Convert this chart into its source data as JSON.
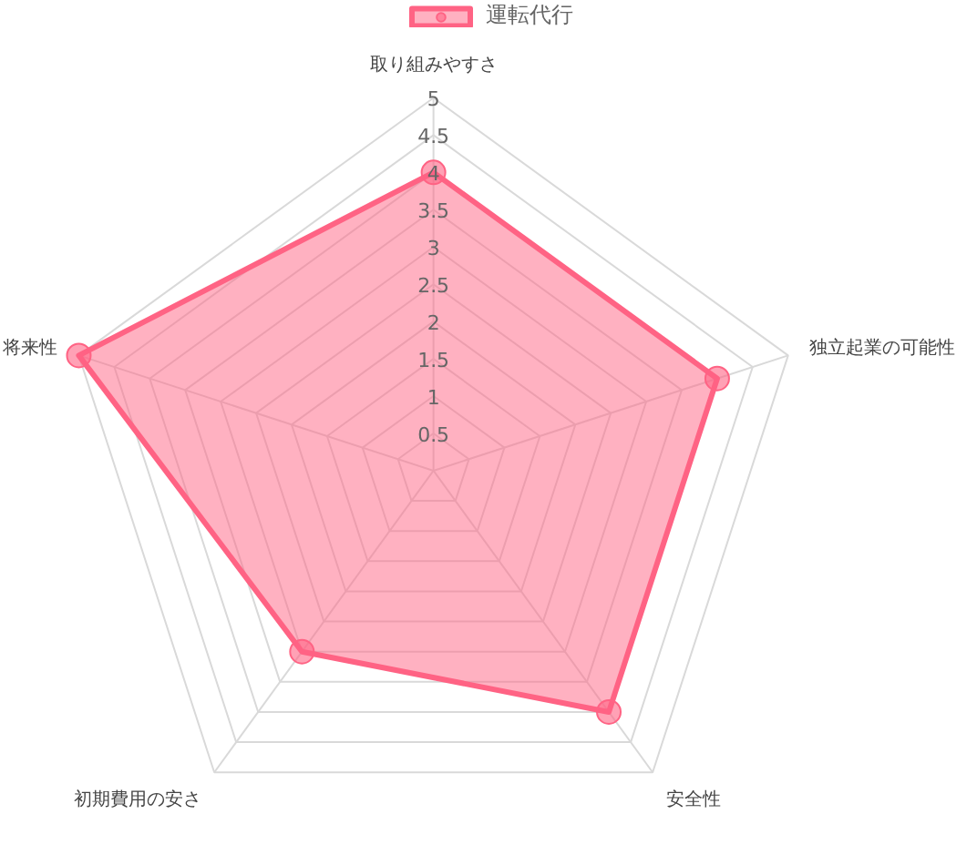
{
  "chart_data": {
    "type": "radar",
    "categories": [
      "取り組みやすさ",
      "独立起業の可能性",
      "安全性",
      "初期費用の安さ",
      "将来性"
    ],
    "series": [
      {
        "name": "運転代行",
        "color": "#ff6384",
        "values": [
          4,
          4,
          4,
          3,
          5
        ]
      }
    ],
    "ylim": [
      0,
      5
    ],
    "yticks": [
      0.5,
      1,
      1.5,
      2,
      2.5,
      3,
      3.5,
      4,
      4.5,
      5
    ],
    "grid": true,
    "legend": "top",
    "marker": "circle"
  }
}
